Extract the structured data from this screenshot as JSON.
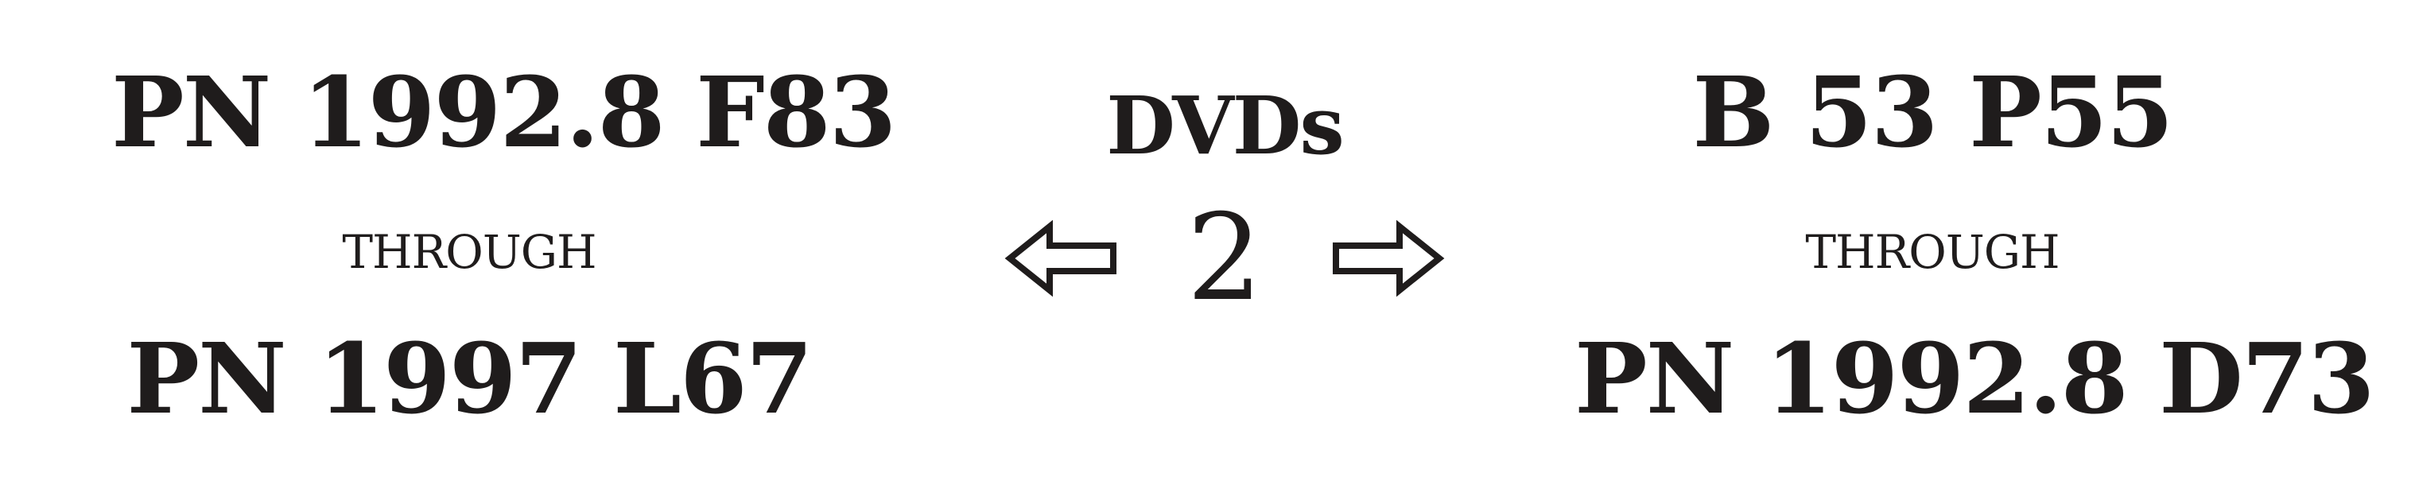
{
  "left": {
    "start": "PN 1992.8 F83",
    "through": "THROUGH",
    "end": "PN 1997 L67"
  },
  "center": {
    "title": "DVDs",
    "number": "2",
    "left_icon": "left-arrow-icon",
    "right_icon": "right-arrow-icon"
  },
  "right": {
    "start": "B 53 P55",
    "through": "THROUGH",
    "end": "PN 1992.8 D73"
  },
  "colors": {
    "text": "#1f1c1c",
    "background": "#ffffff"
  }
}
